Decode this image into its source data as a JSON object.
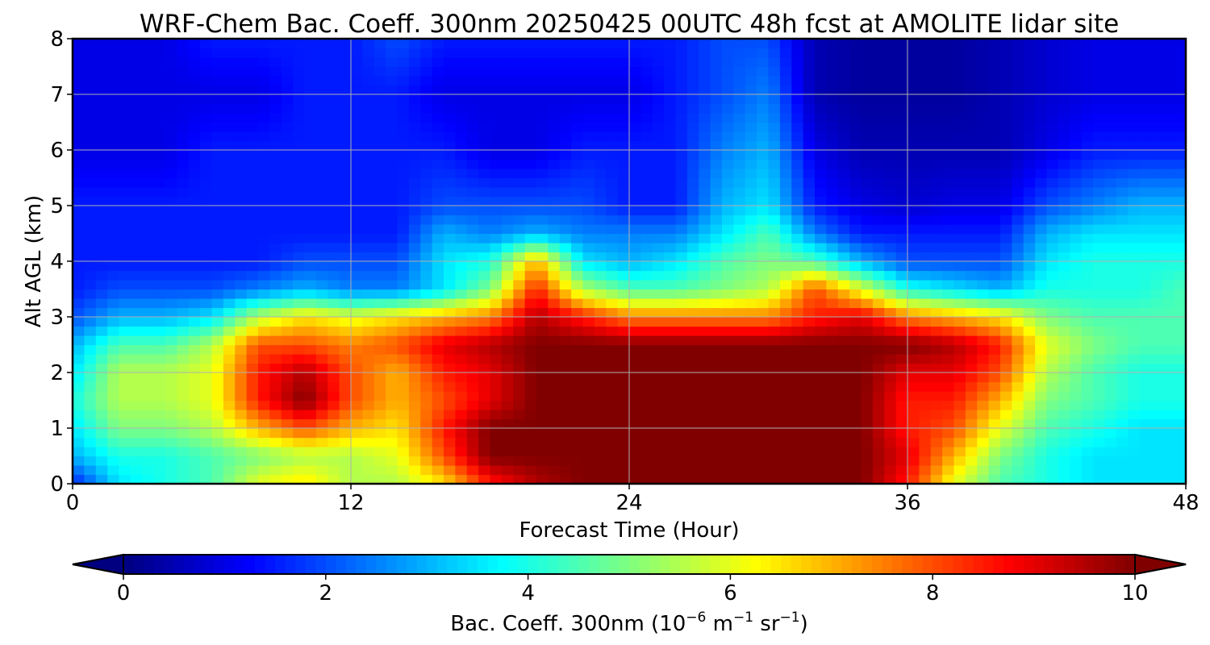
{
  "chart_data": {
    "type": "heatmap",
    "title": "WRF-Chem Bac. Coeff. 300nm  20250425 00UTC 48h fcst at AMOLITE lidar site",
    "xlabel": "Forecast Time (Hour)",
    "ylabel": "Alt AGL (km)",
    "xlim": [
      0,
      48
    ],
    "ylim": [
      0,
      8
    ],
    "xticks": [
      "0",
      "12",
      "24",
      "36",
      "48"
    ],
    "yticks": [
      "0",
      "1",
      "2",
      "3",
      "4",
      "5",
      "6",
      "7",
      "8"
    ],
    "grid": true,
    "colormap": "jet",
    "colorbar": {
      "label_main": "Bac. Coeff. 300nm  (10",
      "label_exp1": "−6",
      "label_mid": " m",
      "label_exp2": "−1",
      "label_mid2": " sr",
      "label_exp3": "−1",
      "label_end": ")",
      "range": [
        0,
        10
      ],
      "ticks": [
        "0",
        "2",
        "4",
        "6",
        "8",
        "10"
      ],
      "extend": "both",
      "orientation": "horizontal"
    },
    "x_hours": [
      0,
      2,
      4,
      6,
      8,
      10,
      12,
      14,
      16,
      18,
      20,
      22,
      24,
      26,
      28,
      30,
      32,
      34,
      36,
      38,
      40,
      42,
      44,
      46,
      48
    ],
    "y_km": [
      0,
      0.5,
      1,
      1.5,
      2,
      2.5,
      3,
      3.5,
      4,
      4.5,
      5,
      6,
      7,
      8
    ],
    "values": [
      [
        1.5,
        3.5,
        4.0,
        4.5,
        6.0,
        6.5,
        5.5,
        5.5,
        6.5,
        8.5,
        9.5,
        10,
        10,
        10,
        10,
        10,
        10,
        10,
        8.5,
        6.0,
        4.5,
        4.0,
        3.5,
        3.5,
        3.5
      ],
      [
        3.0,
        4.0,
        4.0,
        4.5,
        5.0,
        5.5,
        5.5,
        6.0,
        8.0,
        10,
        10,
        10,
        10,
        10,
        10,
        10,
        10,
        10,
        9.0,
        7.0,
        5.0,
        4.0,
        3.5,
        3.5,
        3.5
      ],
      [
        3.5,
        5.0,
        5.0,
        5.5,
        7.0,
        8.0,
        7.0,
        6.5,
        8.5,
        10,
        10,
        10,
        10,
        10,
        10,
        10,
        10,
        10,
        8.5,
        8.0,
        6.0,
        4.5,
        4.0,
        3.5,
        3.5
      ],
      [
        4.0,
        5.5,
        5.5,
        6.0,
        8.5,
        10,
        8.0,
        7.0,
        8.0,
        9.0,
        10,
        10,
        10,
        10,
        10,
        10,
        10,
        10,
        8.5,
        8.5,
        7.0,
        5.0,
        4.5,
        4.0,
        4.0
      ],
      [
        3.5,
        5.5,
        5.5,
        6.0,
        8.5,
        9.5,
        8.0,
        7.0,
        8.5,
        9.0,
        10,
        10,
        10,
        10,
        10,
        10,
        10,
        10,
        9.0,
        9.0,
        8.0,
        5.5,
        4.5,
        4.0,
        4.0
      ],
      [
        3.0,
        4.5,
        4.5,
        5.5,
        8.0,
        8.0,
        7.5,
        8.0,
        9.0,
        9.5,
        10,
        10,
        10,
        10,
        10,
        10,
        10,
        10,
        10,
        9.5,
        8.5,
        6.0,
        5.0,
        4.5,
        4.5
      ],
      [
        2.0,
        3.0,
        3.0,
        3.5,
        5.5,
        6.5,
        6.0,
        6.5,
        7.0,
        7.5,
        9.5,
        8.5,
        7.5,
        7.5,
        7.5,
        7.5,
        8.5,
        9.0,
        7.5,
        7.0,
        6.5,
        5.0,
        4.5,
        4.5,
        4.5
      ],
      [
        1.5,
        2.0,
        2.0,
        2.0,
        2.5,
        3.0,
        2.5,
        2.5,
        3.5,
        5.0,
        8.5,
        5.5,
        4.5,
        4.5,
        5.0,
        5.5,
        8.0,
        6.0,
        4.0,
        3.5,
        3.0,
        4.0,
        4.0,
        4.0,
        4.5
      ],
      [
        1.5,
        1.5,
        1.5,
        1.5,
        1.5,
        2.0,
        2.0,
        2.0,
        3.5,
        4.0,
        7.0,
        3.5,
        3.0,
        3.5,
        4.5,
        5.0,
        4.5,
        3.0,
        2.0,
        2.0,
        2.0,
        3.5,
        4.0,
        4.0,
        4.0
      ],
      [
        1.5,
        1.5,
        1.5,
        1.5,
        1.5,
        1.5,
        1.5,
        1.5,
        3.0,
        2.5,
        3.0,
        2.5,
        2.5,
        2.5,
        3.5,
        4.5,
        2.5,
        1.5,
        1.5,
        1.5,
        1.5,
        3.0,
        3.5,
        3.5,
        3.5
      ],
      [
        1.5,
        1.5,
        1.5,
        1.5,
        1.5,
        1.5,
        1.5,
        1.5,
        2.0,
        2.0,
        2.0,
        2.0,
        1.5,
        1.5,
        3.0,
        3.5,
        1.5,
        1.0,
        0.8,
        1.0,
        1.0,
        2.0,
        2.5,
        3.0,
        3.0
      ],
      [
        1.0,
        1.0,
        1.0,
        1.5,
        1.5,
        1.5,
        1.5,
        1.5,
        1.5,
        1.0,
        1.0,
        1.5,
        1.5,
        1.5,
        2.5,
        3.0,
        1.0,
        0.5,
        0.5,
        0.5,
        0.5,
        1.0,
        1.5,
        1.5,
        1.5
      ],
      [
        1.0,
        1.0,
        1.0,
        1.0,
        1.0,
        1.5,
        1.5,
        1.5,
        1.0,
        1.0,
        1.0,
        1.0,
        1.0,
        1.5,
        2.0,
        2.5,
        0.5,
        0.3,
        0.3,
        0.3,
        0.5,
        0.8,
        1.0,
        1.0,
        1.0
      ],
      [
        1.0,
        1.0,
        1.0,
        1.5,
        1.5,
        1.5,
        1.5,
        2.0,
        1.5,
        1.5,
        1.5,
        1.5,
        1.5,
        1.5,
        2.0,
        2.0,
        0.5,
        0.3,
        0.3,
        0.3,
        0.5,
        0.8,
        1.0,
        1.0,
        1.0
      ]
    ]
  }
}
